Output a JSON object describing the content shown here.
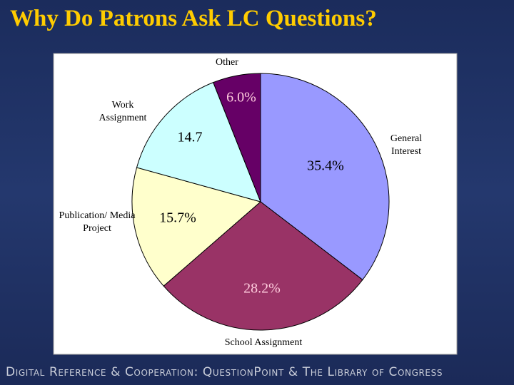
{
  "slide_title": "Why Do Patrons Ask LC Questions?",
  "footer": "Digital Reference & Cooperation: QuestionPoint & The Library of Congress",
  "chart_data": {
    "type": "pie",
    "categories": [
      "General Interest",
      "School Assignment",
      "Publication/ Media Project",
      "Work Assignment",
      "Other"
    ],
    "values": [
      35.4,
      28.2,
      15.7,
      14.7,
      6.0
    ],
    "value_labels": [
      "35.4%",
      "28.2%",
      "15.7%",
      "14.7",
      "6.0%"
    ],
    "colors": [
      "#9999ff",
      "#993366",
      "#ffffcc",
      "#ccffff",
      "#660066"
    ]
  }
}
